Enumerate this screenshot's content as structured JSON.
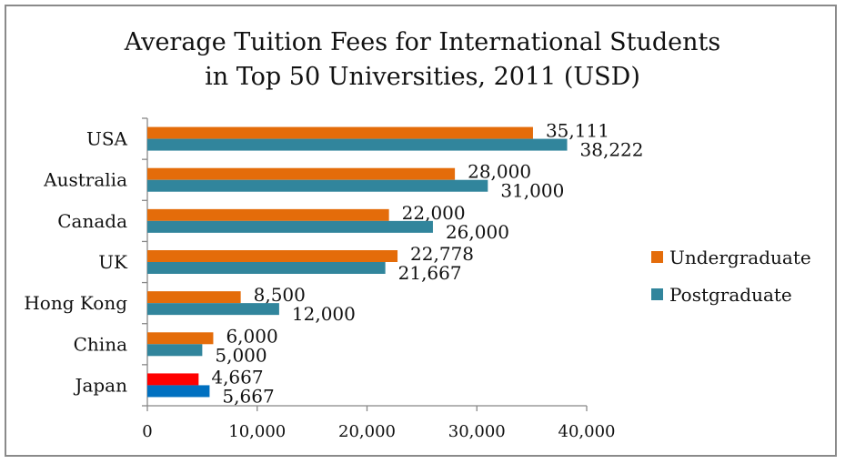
{
  "chart_data": {
    "type": "bar",
    "orientation": "horizontal",
    "title_line1": "Average Tuition Fees for International Students",
    "title_line2": "in Top 50 Universities, 2011 (USD)",
    "categories": [
      "USA",
      "Australia",
      "Canada",
      "UK",
      "Hong Kong",
      "China",
      "Japan"
    ],
    "series": [
      {
        "name": "Undergraduate",
        "color": "#e46c0a",
        "values": [
          35111,
          28000,
          22000,
          22778,
          8500,
          6000,
          4667
        ],
        "labels": [
          "35,111",
          "28,000",
          "22,000",
          "22,778",
          "8,500",
          "6,000",
          "4,667"
        ]
      },
      {
        "name": "Postgraduate",
        "color": "#31859c",
        "values": [
          38222,
          31000,
          26000,
          21667,
          12000,
          5000,
          5667
        ],
        "labels": [
          "38,222",
          "31,000",
          "26,000",
          "21,667",
          "12,000",
          "5,000",
          "5,667"
        ]
      }
    ],
    "highlight": {
      "category": "Japan",
      "colors": [
        "#ff0000",
        "#0070c0"
      ]
    },
    "xlim": [
      0,
      40000
    ],
    "xticks": [
      0,
      10000,
      20000,
      30000,
      40000
    ],
    "xtick_labels": [
      "0",
      "10,000",
      "20,000",
      "30,000",
      "40,000"
    ],
    "grid": false,
    "legend_position": "right"
  }
}
